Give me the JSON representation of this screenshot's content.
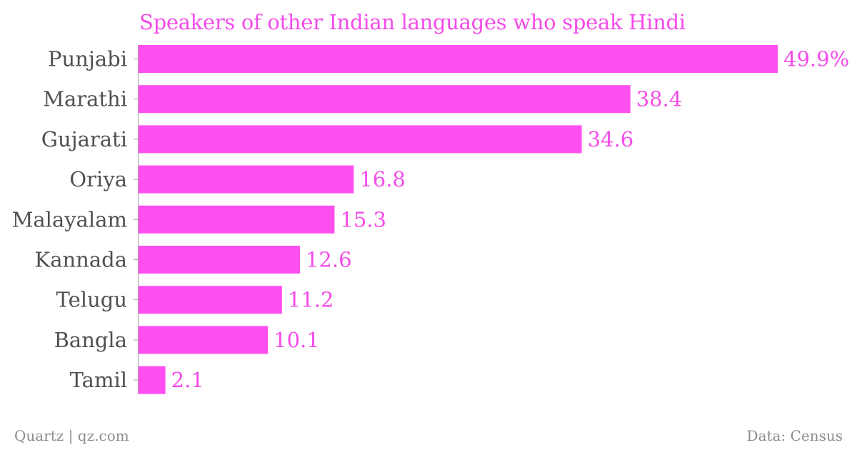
{
  "chart_data": {
    "type": "bar",
    "orientation": "horizontal",
    "title": "Speakers of other Indian languages who speak Hindi",
    "categories": [
      "Punjabi",
      "Marathi",
      "Gujarati",
      "Oriya",
      "Malayalam",
      "Kannada",
      "Telugu",
      "Bangla",
      "Tamil"
    ],
    "values": [
      49.9,
      38.4,
      34.6,
      16.8,
      15.3,
      12.6,
      11.2,
      10.1,
      2.1
    ],
    "value_labels": [
      "49.9%",
      "38.4",
      "34.6",
      "16.8",
      "15.3",
      "12.6",
      "11.2",
      "10.1",
      "2.1"
    ],
    "xlim": [
      0,
      49.9
    ],
    "grid": false,
    "colors": {
      "bar": "#ff4ff0",
      "value_text": "#f54be9",
      "title": "#f54be9",
      "category_text": "#505050",
      "axis": "#a0a0a0",
      "footer": "#8c8c8c"
    }
  },
  "footer": {
    "left": "Quartz | qz.com",
    "right": "Data: Census"
  }
}
